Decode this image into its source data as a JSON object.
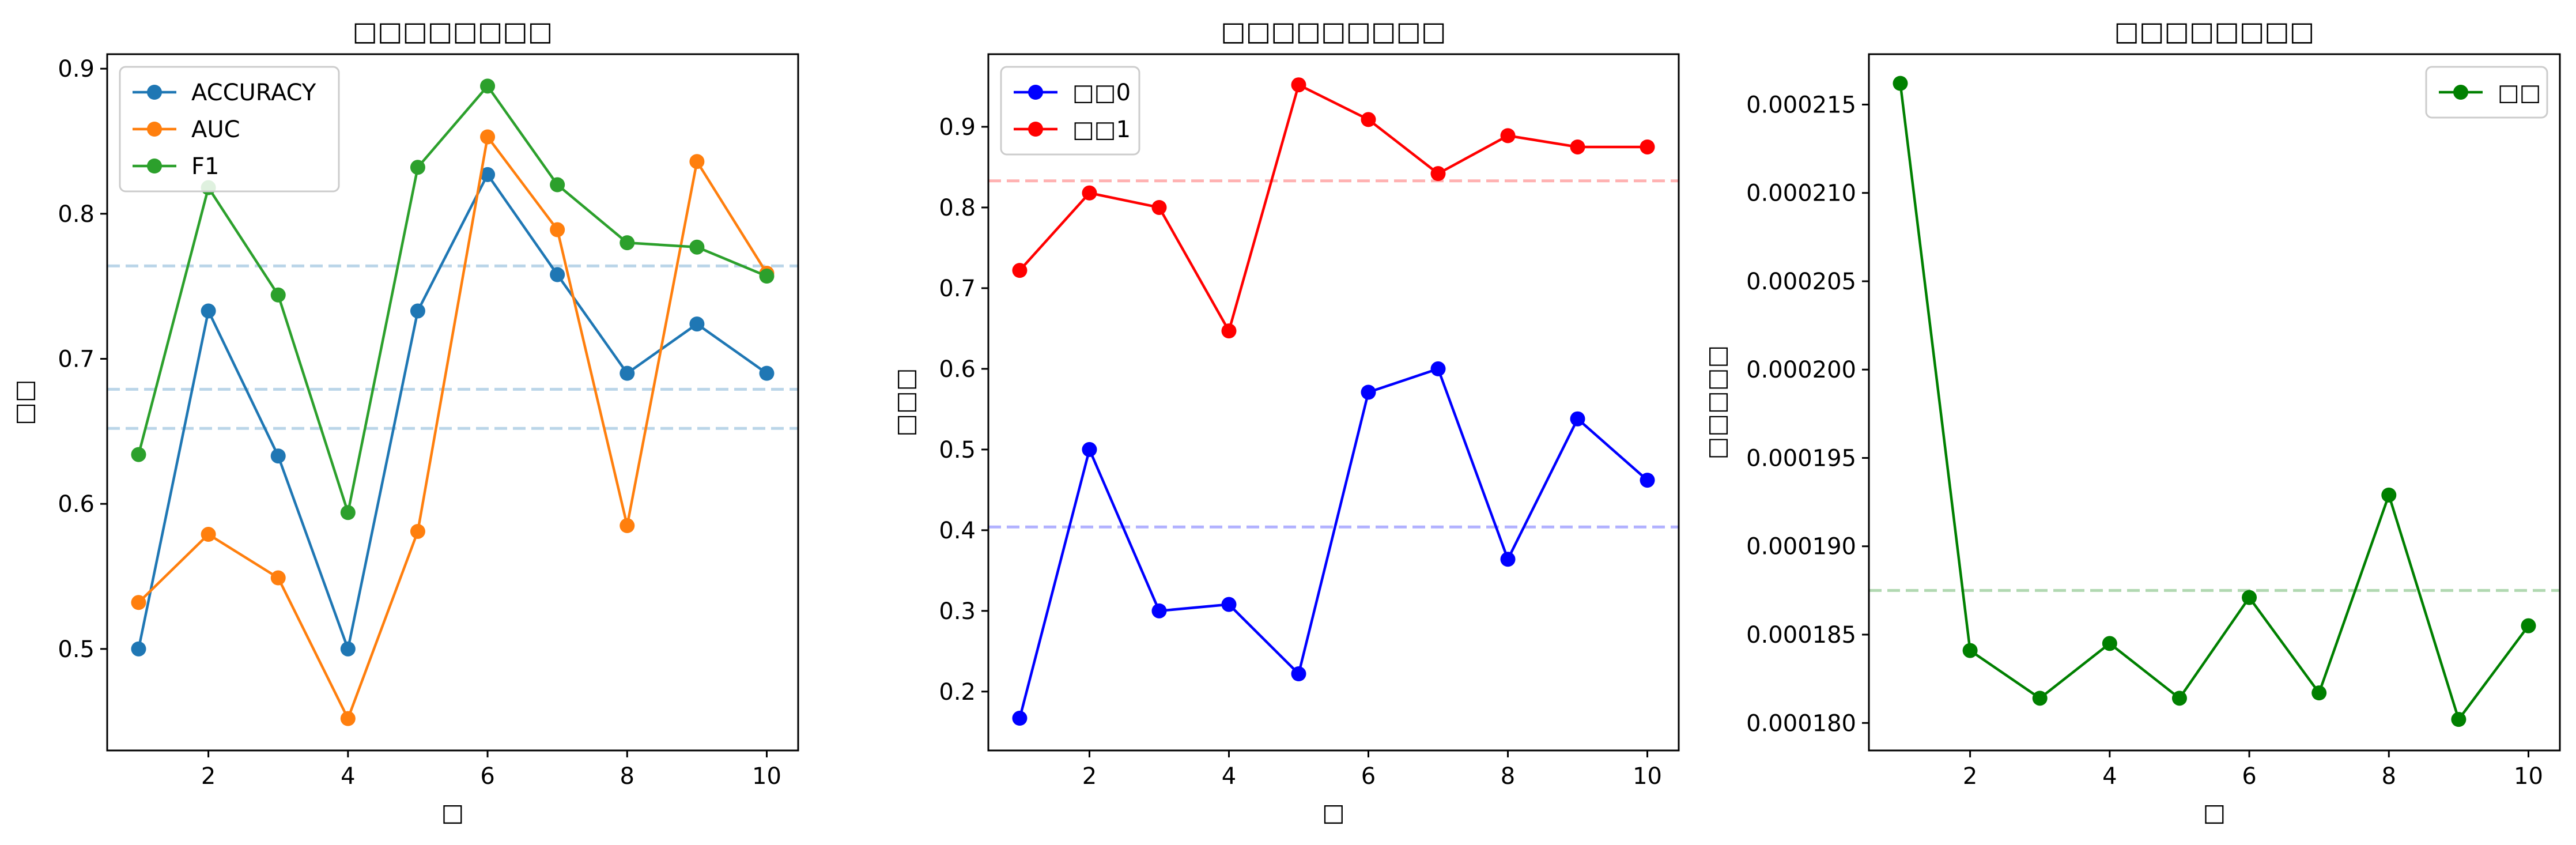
{
  "chart_data": [
    {
      "type": "line",
      "title": "□□□□□□□□",
      "xlabel": "□",
      "ylabel": "□□",
      "x": [
        1,
        2,
        3,
        4,
        5,
        6,
        7,
        8,
        9,
        10
      ],
      "xlim": [
        0.55,
        10.45
      ],
      "ylim": [
        0.43,
        0.91
      ],
      "xticks": [
        "2",
        "4",
        "6",
        "8",
        "10"
      ],
      "yticks": [
        "0.5",
        "0.6",
        "0.7",
        "0.8",
        "0.9"
      ],
      "legend_position": "top-left",
      "series": [
        {
          "name": "ACCURACY",
          "color": "#1f77b4",
          "values": [
            0.5,
            0.733,
            0.633,
            0.5,
            0.733,
            0.827,
            0.758,
            0.69,
            0.724,
            0.69
          ]
        },
        {
          "name": "AUC",
          "color": "#ff7f0e",
          "values": [
            0.532,
            0.579,
            0.549,
            0.452,
            0.581,
            0.853,
            0.789,
            0.585,
            0.836,
            0.759
          ]
        },
        {
          "name": "F1",
          "color": "#2ca02c",
          "values": [
            0.634,
            0.818,
            0.744,
            0.594,
            0.832,
            0.888,
            0.82,
            0.78,
            0.777,
            0.757
          ]
        }
      ],
      "reference_lines": [
        {
          "value": 0.764,
          "color": "#1f77b4"
        },
        {
          "value": 0.679,
          "color": "#1f77b4"
        },
        {
          "value": 0.652,
          "color": "#1f77b4"
        }
      ]
    },
    {
      "type": "line",
      "title": "□□□□□□□□□",
      "xlabel": "□",
      "ylabel": "□□□",
      "x": [
        1,
        2,
        3,
        4,
        5,
        6,
        7,
        8,
        9,
        10
      ],
      "xlim": [
        0.55,
        10.45
      ],
      "ylim": [
        0.127,
        0.99
      ],
      "xticks": [
        "2",
        "4",
        "6",
        "8",
        "10"
      ],
      "yticks": [
        "0.2",
        "0.3",
        "0.4",
        "0.5",
        "0.6",
        "0.7",
        "0.8",
        "0.9"
      ],
      "legend_position": "top-left",
      "series": [
        {
          "name": "□□0",
          "color": "#0000ff",
          "values": [
            0.167,
            0.5,
            0.3,
            0.308,
            0.222,
            0.571,
            0.6,
            0.364,
            0.538,
            0.462
          ]
        },
        {
          "name": "□□1",
          "color": "#ff0000",
          "values": [
            0.722,
            0.818,
            0.8,
            0.647,
            0.952,
            0.909,
            0.842,
            0.889,
            0.875,
            0.875
          ]
        }
      ],
      "reference_lines": [
        {
          "value": 0.404,
          "color": "#0000ff"
        },
        {
          "value": 0.833,
          "color": "#ff0000"
        }
      ]
    },
    {
      "type": "line",
      "title": "□□□□□□□□",
      "xlabel": "□",
      "ylabel": "□□□□□",
      "x": [
        1,
        2,
        3,
        4,
        5,
        6,
        7,
        8,
        9,
        10
      ],
      "xlim": [
        0.55,
        10.45
      ],
      "ylim": [
        0.000178443,
        0.000217852
      ],
      "xticks": [
        "2",
        "4",
        "6",
        "8",
        "10"
      ],
      "yticks": [
        "0.000180",
        "0.000185",
        "0.000190",
        "0.000195",
        "0.000200",
        "0.000205",
        "0.000210",
        "0.000215"
      ],
      "legend_position": "top-right",
      "series": [
        {
          "name": "□□",
          "color": "#008000",
          "values": [
            0.0002162,
            0.0001841,
            0.0001814,
            0.0001845,
            0.0001814,
            0.0001871,
            0.0001817,
            0.0001929,
            0.0001802,
            0.0001855
          ]
        }
      ],
      "reference_lines": [
        {
          "value": 0.0001875,
          "color": "#008000"
        }
      ]
    }
  ]
}
